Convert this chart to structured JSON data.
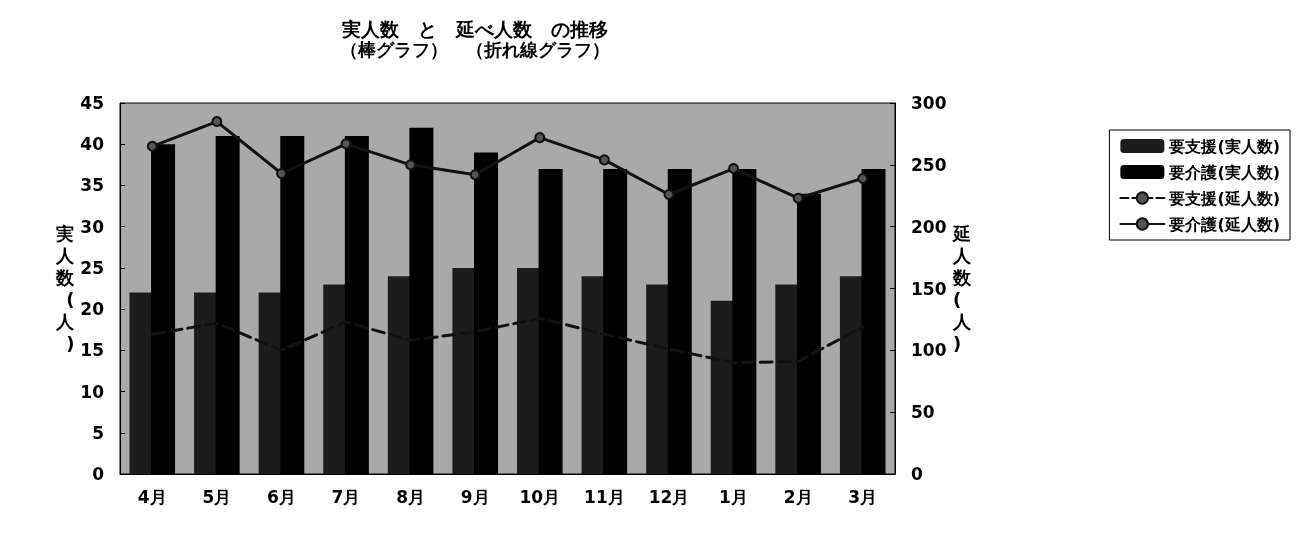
{
  "chart_data": {
    "type": "bar",
    "title": "実人数　と　延べ人数　の推移",
    "subtitle": "（棒グラフ）　（折れ線グラフ）",
    "ylabel": "実人数(人)",
    "y2label": "延人数(人)",
    "categories": [
      "4月",
      "5月",
      "6月",
      "7月",
      "8月",
      "9月",
      "10月",
      "11月",
      "12月",
      "1月",
      "2月",
      "3月"
    ],
    "series": [
      {
        "name": "要支援(実人数)",
        "color": "#1c1c1c",
        "values": [
          22,
          22,
          22,
          23,
          24,
          25,
          25,
          24,
          23,
          21,
          23,
          24
        ]
      },
      {
        "name": "要介護(実人数)",
        "color": "#000000",
        "values": [
          40,
          41,
          41,
          41,
          42,
          39,
          37,
          37,
          37,
          37,
          34,
          37
        ]
      },
      {
        "name": "要支援(延人数)",
        "type": "line",
        "axis": "y2",
        "color": "#111111",
        "line_style": "dashed",
        "values": [
          113,
          122,
          100,
          123,
          108,
          115,
          126,
          113,
          101,
          90,
          91,
          119
        ]
      },
      {
        "name": "要介護(延人数)",
        "type": "line",
        "axis": "y2",
        "color": "#111111",
        "marker": "circle",
        "values": [
          265,
          285,
          243,
          267,
          250,
          242,
          272,
          254,
          226,
          247,
          223,
          239
        ]
      }
    ],
    "ylim": [
      0,
      45
    ],
    "yticks": [
      0,
      5,
      10,
      15,
      20,
      25,
      30,
      35,
      40,
      45
    ],
    "y2lim": [
      0,
      300
    ],
    "y2ticks": [
      0,
      50,
      100,
      150,
      200,
      250,
      300
    ],
    "grid": false,
    "legend": "right"
  }
}
